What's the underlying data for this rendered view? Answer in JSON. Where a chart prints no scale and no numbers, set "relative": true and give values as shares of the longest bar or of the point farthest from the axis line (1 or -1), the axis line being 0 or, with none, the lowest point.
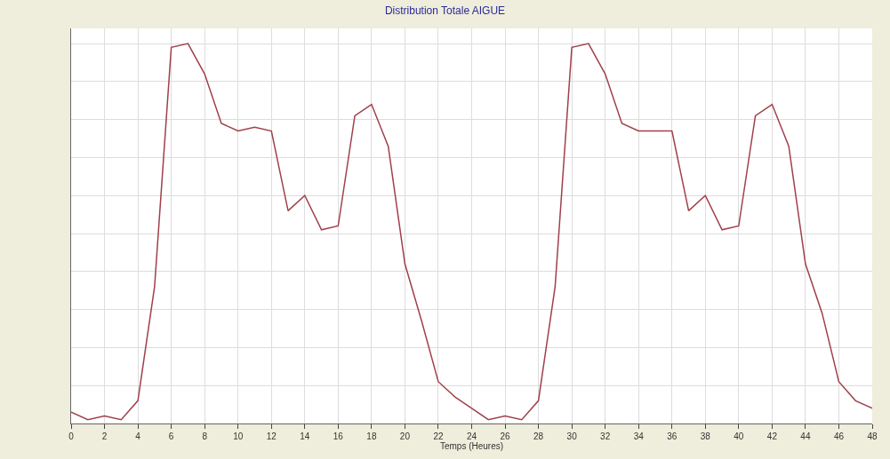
{
  "chart_data": {
    "type": "line",
    "title": "Distribution Totale AIGUE",
    "xlabel": "Temps (Heures)",
    "relative": true,
    "x": [
      0,
      1,
      2,
      3,
      4,
      5,
      6,
      7,
      8,
      9,
      10,
      11,
      12,
      13,
      14,
      15,
      16,
      17,
      18,
      19,
      20,
      21,
      22,
      23,
      24,
      25,
      26,
      27,
      28,
      29,
      30,
      31,
      32,
      33,
      34,
      35,
      36,
      37,
      38,
      39,
      40,
      41,
      42,
      43,
      44,
      45,
      46,
      47,
      48
    ],
    "series": [
      {
        "color": "#a0404a",
        "values": [
          0.03,
          0.01,
          0.02,
          0.01,
          0.06,
          0.36,
          0.99,
          1,
          0.92,
          0.79,
          0.77,
          0.78,
          0.77,
          0.56,
          0.6,
          0.51,
          0.52,
          0.81,
          0.84,
          0.73,
          0.42,
          0.27,
          0.11,
          0.07,
          0.04,
          0.01,
          0.02,
          0.01,
          0.06,
          0.36,
          0.99,
          1,
          0.92,
          0.79,
          0.77,
          0.77,
          0.77,
          0.56,
          0.6,
          0.51,
          0.52,
          0.81,
          0.84,
          0.73,
          0.42,
          0.29,
          0.11,
          0.06,
          0.04
        ]
      }
    ],
    "xlim": [
      0,
      48
    ],
    "xticks": [
      0,
      2,
      4,
      6,
      8,
      10,
      12,
      14,
      16,
      18,
      20,
      22,
      24,
      26,
      28,
      30,
      32,
      34,
      36,
      38,
      40,
      42,
      44,
      46,
      48
    ],
    "grid": true,
    "marker": "none",
    "line_style": "solid"
  }
}
